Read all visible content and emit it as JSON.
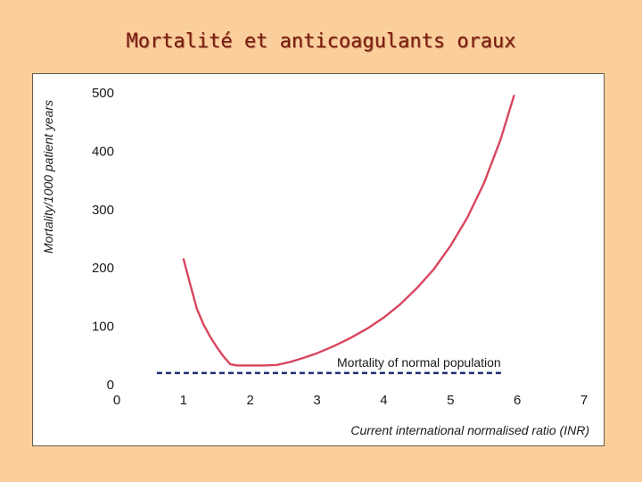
{
  "slide": {
    "title": "Mortalité et anticoagulants oraux"
  },
  "chart_data": {
    "type": "line",
    "title": "",
    "xlabel": "Current international normalised ratio (INR)",
    "ylabel": "Mortality/1000 patient years",
    "xlim": [
      0,
      7
    ],
    "ylim": [
      0,
      500
    ],
    "x_ticks": [
      "0",
      "1",
      "2",
      "3",
      "4",
      "5",
      "6",
      "7"
    ],
    "y_ticks": [
      "0",
      "100",
      "200",
      "300",
      "400",
      "500"
    ],
    "grid": false,
    "series": [
      {
        "name": "",
        "color": "#d8455e",
        "x": [
          1.0,
          1.1,
          1.2,
          1.3,
          1.4,
          1.5,
          1.6,
          1.7,
          1.8,
          2.0,
          2.2,
          2.4,
          2.6,
          2.8,
          3.0,
          3.25,
          3.5,
          3.75,
          4.0,
          4.25,
          4.5,
          4.75,
          5.0,
          5.25,
          5.5,
          5.75,
          5.95
        ],
        "y": [
          215,
          172,
          130,
          103,
          82,
          64,
          48,
          35,
          33,
          33,
          33,
          34,
          39,
          46,
          54,
          66,
          80,
          96,
          115,
          138,
          166,
          198,
          238,
          286,
          345,
          420,
          495
        ]
      },
      {
        "name": "Mortality of normal population",
        "style": "dashed",
        "color": "#1f2f70",
        "x": [
          0.6,
          5.8
        ],
        "y": [
          20,
          20
        ]
      }
    ],
    "annotations": [
      {
        "text": "Mortality of normal population",
        "x": 3.3,
        "y": 40
      }
    ]
  }
}
